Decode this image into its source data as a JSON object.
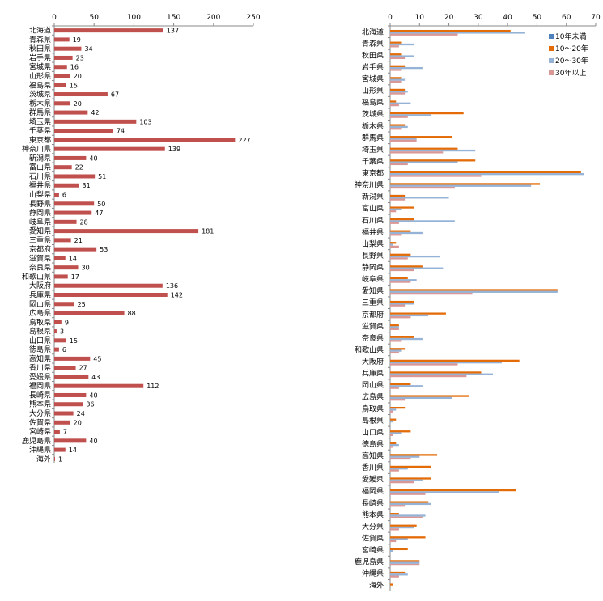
{
  "chart_data": [
    {
      "type": "bar",
      "orientation": "horizontal",
      "categories": [
        "北海道",
        "青森県",
        "秋田県",
        "岩手県",
        "宮城県",
        "山形県",
        "福島県",
        "茨城県",
        "栃木県",
        "群馬県",
        "埼玉県",
        "千葉県",
        "東京都",
        "神奈川県",
        "新潟県",
        "富山県",
        "石川県",
        "福井県",
        "山梨県",
        "長野県",
        "静岡県",
        "岐阜県",
        "愛知県",
        "三重県",
        "京都府",
        "滋賀県",
        "奈良県",
        "和歌山県",
        "大阪府",
        "兵庫県",
        "岡山県",
        "広島県",
        "鳥取県",
        "島根県",
        "山口県",
        "徳島県",
        "高知県",
        "香川県",
        "愛媛県",
        "福岡県",
        "長崎県",
        "熊本県",
        "大分県",
        "佐賀県",
        "宮崎県",
        "鹿児島県",
        "沖縄県",
        "海外"
      ],
      "values": [
        137,
        19,
        34,
        23,
        16,
        20,
        15,
        67,
        20,
        42,
        103,
        74,
        227,
        139,
        40,
        22,
        51,
        31,
        6,
        50,
        47,
        28,
        181,
        21,
        53,
        14,
        30,
        17,
        136,
        142,
        25,
        88,
        9,
        3,
        15,
        6,
        45,
        27,
        43,
        112,
        40,
        36,
        24,
        20,
        7,
        40,
        14,
        1
      ],
      "xlim": [
        0,
        250
      ],
      "xticks": [
        0,
        50,
        100,
        150,
        200,
        250
      ],
      "colors": {
        "bar": "#c0504d"
      },
      "grid": false,
      "title": "",
      "xlabel": "",
      "ylabel": ""
    },
    {
      "type": "bar",
      "orientation": "horizontal",
      "categories": [
        "北海道",
        "青森県",
        "秋田県",
        "岩手県",
        "宮城県",
        "山形県",
        "福島県",
        "茨城県",
        "栃木県",
        "群馬県",
        "埼玉県",
        "千葉県",
        "東京都",
        "神奈川県",
        "新潟県",
        "富山県",
        "石川県",
        "福井県",
        "山梨県",
        "長野県",
        "静岡県",
        "岐阜県",
        "愛知県",
        "三重県",
        "京都府",
        "滋賀県",
        "奈良県",
        "和歌山県",
        "大阪府",
        "兵庫県",
        "岡山県",
        "広島県",
        "鳥取県",
        "島根県",
        "山口県",
        "徳島県",
        "高知県",
        "香川県",
        "愛媛県",
        "福岡県",
        "長崎県",
        "熊本県",
        "大分県",
        "佐賀県",
        "宮崎県",
        "鹿児島県",
        "沖縄県",
        "海外"
      ],
      "series": [
        {
          "name": "10年未満",
          "color": "#4f81bd",
          "values": [
            0,
            0,
            0,
            0,
            0,
            0,
            0,
            0,
            0,
            0,
            0,
            0,
            0,
            0,
            0,
            0,
            0,
            0,
            0,
            0,
            0,
            0,
            0,
            0,
            0,
            0,
            0,
            0,
            0,
            0,
            0,
            0,
            0,
            0,
            0,
            0,
            0,
            0,
            0,
            0,
            0,
            0,
            0,
            0,
            0,
            0,
            0,
            0
          ]
        },
        {
          "name": "10〜20年",
          "color": "#e36c09",
          "values": [
            41,
            4,
            4,
            5,
            4,
            5,
            2,
            25,
            5,
            21,
            23,
            29,
            65,
            51,
            5,
            8,
            8,
            7,
            2,
            7,
            11,
            6,
            57,
            8,
            19,
            3,
            8,
            5,
            44,
            31,
            7,
            27,
            5,
            2,
            7,
            2,
            16,
            14,
            14,
            43,
            13,
            3,
            9,
            12,
            6,
            10,
            5,
            1
          ]
        },
        {
          "name": "20〜30年",
          "color": "#95b3d7",
          "values": [
            46,
            8,
            8,
            11,
            5,
            6,
            7,
            14,
            6,
            9,
            29,
            23,
            66,
            48,
            20,
            4,
            22,
            11,
            1,
            17,
            18,
            9,
            57,
            8,
            13,
            3,
            11,
            4,
            38,
            35,
            11,
            21,
            2,
            1,
            4,
            3,
            10,
            6,
            11,
            37,
            14,
            12,
            8,
            6,
            1,
            10,
            6,
            0
          ]
        },
        {
          "name": "30年以上",
          "color": "#d99795",
          "values": [
            23,
            3,
            5,
            4,
            4,
            5,
            3,
            6,
            4,
            9,
            18,
            6,
            31,
            22,
            5,
            2,
            3,
            4,
            3,
            6,
            8,
            7,
            28,
            5,
            7,
            3,
            4,
            3,
            23,
            26,
            3,
            5,
            1,
            0,
            1,
            1,
            7,
            3,
            8,
            12,
            5,
            11,
            3,
            2,
            0,
            10,
            3,
            0
          ]
        }
      ],
      "xlim": [
        0,
        70
      ],
      "xticks": [
        0,
        10,
        20,
        30,
        40,
        50,
        60,
        70
      ],
      "legend": "top-right",
      "grid": false,
      "title": "",
      "xlabel": "",
      "ylabel": ""
    }
  ]
}
